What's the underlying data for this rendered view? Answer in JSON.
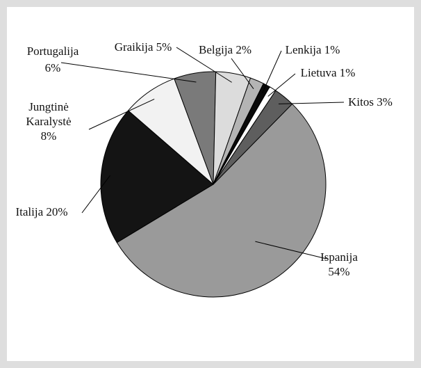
{
  "chart_data": {
    "type": "pie",
    "title": "",
    "slices": [
      {
        "label": "Ispanija",
        "value": 54,
        "display": [
          "Ispanija",
          "54%"
        ],
        "color": "#9a9a9a"
      },
      {
        "label": "Italija",
        "value": 20,
        "display": [
          "Italija 20%"
        ],
        "color": "#141414"
      },
      {
        "label": "Jungtinė Karalystė",
        "value": 8,
        "display": [
          "Jungtinė",
          "Karalystė",
          "8%"
        ],
        "color": "#f2f2f2"
      },
      {
        "label": "Portugalija",
        "value": 6,
        "display": [
          "Portugalija",
          "6%"
        ],
        "color": "#7a7a7a"
      },
      {
        "label": "Graikija",
        "value": 5,
        "display": [
          "Graikija 5%"
        ],
        "color": "#dcdcdc"
      },
      {
        "label": "Belgija",
        "value": 2,
        "display": [
          "Belgija 2%"
        ],
        "color": "#b4b4b4"
      },
      {
        "label": "Lenkija",
        "value": 1,
        "display": [
          "Lenkija 1%"
        ],
        "color": "#0a0a0a"
      },
      {
        "label": "Lietuva",
        "value": 1,
        "display": [
          "Lietuva 1%"
        ],
        "color": "#ffffff"
      },
      {
        "label": "Kitos",
        "value": 3,
        "display": [
          "Kitos 3%"
        ],
        "color": "#5e5e5e"
      }
    ]
  }
}
